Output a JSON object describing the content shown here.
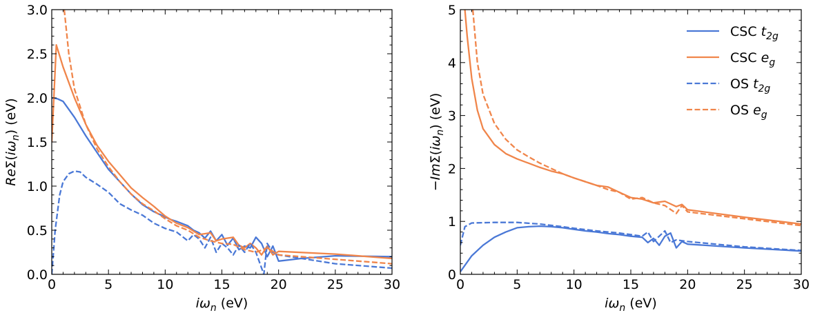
{
  "chart_data": [
    {
      "type": "line",
      "panel": "left",
      "ylabel": {
        "pre": "Re",
        "sigma": "Σ(",
        "iw": "iω",
        "sub": "n",
        "post": ")",
        "unit": "(eV)"
      },
      "xlabel": {
        "iw": "iω",
        "sub": "n",
        "unit": "(eV)"
      },
      "xlim": [
        0,
        30
      ],
      "ylim": [
        0,
        3.0
      ],
      "xticks": [
        "0",
        "5",
        "10",
        "15",
        "20",
        "25",
        "30"
      ],
      "yticks": [
        "0.0",
        "0.5",
        "1.0",
        "1.5",
        "2.0",
        "2.5",
        "3.0"
      ],
      "series": [
        {
          "name": "CSC t2g",
          "color": "#4a78d6",
          "dash": false,
          "x": [
            0,
            0.5,
            1,
            2,
            3,
            4,
            5,
            6,
            7,
            8,
            9,
            10,
            10.5,
            11,
            12,
            12.5,
            13,
            13.5,
            14,
            14.5,
            15,
            15.5,
            16,
            16.5,
            17,
            17.5,
            18,
            18.5,
            19,
            19.5,
            20,
            22,
            25,
            30
          ],
          "y": [
            2.0,
            1.99,
            1.96,
            1.78,
            1.57,
            1.38,
            1.19,
            1.05,
            0.91,
            0.79,
            0.71,
            0.65,
            0.62,
            0.6,
            0.55,
            0.5,
            0.47,
            0.41,
            0.49,
            0.38,
            0.45,
            0.33,
            0.41,
            0.28,
            0.32,
            0.3,
            0.42,
            0.35,
            0.2,
            0.32,
            0.15,
            0.18,
            0.21,
            0.2
          ]
        },
        {
          "name": "CSC eg",
          "color": "#f0854a",
          "dash": false,
          "x": [
            0,
            0.4,
            1,
            2,
            3,
            4,
            5,
            6,
            7,
            8,
            9,
            10,
            11,
            12,
            13,
            14,
            14.5,
            15,
            16,
            16.5,
            17,
            17.5,
            18,
            18.5,
            19,
            19.5,
            20,
            25,
            30
          ],
          "y": [
            1.5,
            2.6,
            2.35,
            2.0,
            1.7,
            1.46,
            1.28,
            1.13,
            0.98,
            0.87,
            0.77,
            0.66,
            0.58,
            0.53,
            0.45,
            0.47,
            0.38,
            0.4,
            0.42,
            0.33,
            0.3,
            0.35,
            0.3,
            0.22,
            0.32,
            0.22,
            0.26,
            0.23,
            0.18
          ]
        },
        {
          "name": "OS t2g",
          "color": "#4a78d6",
          "dash": true,
          "x": [
            0,
            0.3,
            0.7,
            1,
            1.5,
            2,
            2.5,
            3,
            4,
            5,
            6,
            7,
            8,
            9,
            10,
            11,
            12,
            12.5,
            13,
            13.5,
            14,
            14.5,
            15,
            15.5,
            16,
            16.5,
            17,
            17.5,
            18,
            18.7,
            19,
            19.5,
            20,
            25,
            30
          ],
          "y": [
            0.0,
            0.5,
            0.9,
            1.05,
            1.14,
            1.17,
            1.16,
            1.1,
            1.02,
            0.93,
            0.8,
            0.73,
            0.67,
            0.58,
            0.52,
            0.48,
            0.38,
            0.45,
            0.4,
            0.3,
            0.42,
            0.25,
            0.35,
            0.3,
            0.22,
            0.33,
            0.25,
            0.35,
            0.25,
            0.0,
            0.35,
            0.25,
            0.22,
            0.12,
            0.07
          ]
        },
        {
          "name": "OS eg",
          "color": "#f0854a",
          "dash": true,
          "x": [
            1.1,
            1.5,
            2,
            3,
            4,
            5,
            6,
            7,
            8,
            9,
            10,
            11,
            12,
            13,
            14,
            15,
            16,
            17,
            18,
            19,
            20,
            25,
            30
          ],
          "y": [
            3.0,
            2.5,
            2.1,
            1.7,
            1.42,
            1.22,
            1.05,
            0.91,
            0.8,
            0.72,
            0.63,
            0.55,
            0.5,
            0.42,
            0.38,
            0.35,
            0.34,
            0.28,
            0.25,
            0.3,
            0.22,
            0.17,
            0.12
          ]
        }
      ]
    },
    {
      "type": "line",
      "panel": "right",
      "ylabel": {
        "pre": "−Im",
        "sigma": "Σ(",
        "iw": "iω",
        "sub": "n",
        "post": ")",
        "unit": "(eV)"
      },
      "xlabel": {
        "iw": "iω",
        "sub": "n",
        "unit": "(eV)"
      },
      "xlim": [
        0,
        30
      ],
      "ylim": [
        0,
        5
      ],
      "xticks": [
        "0",
        "5",
        "10",
        "15",
        "20",
        "25",
        "30"
      ],
      "yticks": [
        "0",
        "1",
        "2",
        "3",
        "4",
        "5"
      ],
      "legend": "top-right",
      "series": [
        {
          "name": "CSC t2g",
          "label_main": "CSC",
          "label_sym": "t",
          "label_sub": "2g",
          "color": "#4a78d6",
          "dash": false,
          "x": [
            0,
            1,
            2,
            3,
            4,
            5,
            6,
            7,
            8,
            9,
            10,
            11,
            12,
            13,
            14,
            15,
            16,
            16.5,
            17,
            17.5,
            18,
            18.5,
            19,
            19.5,
            20,
            25,
            30
          ],
          "y": [
            0.05,
            0.35,
            0.55,
            0.7,
            0.8,
            0.88,
            0.9,
            0.91,
            0.9,
            0.88,
            0.85,
            0.82,
            0.8,
            0.77,
            0.75,
            0.72,
            0.7,
            0.6,
            0.68,
            0.55,
            0.72,
            0.78,
            0.5,
            0.62,
            0.57,
            0.5,
            0.44
          ]
        },
        {
          "name": "CSC eg",
          "label_main": "CSC",
          "label_sym": "e",
          "label_sub": "g",
          "color": "#f0854a",
          "dash": false,
          "x": [
            0.4,
            0.6,
            1,
            1.5,
            2,
            3,
            4,
            5,
            6,
            7,
            8,
            9,
            10,
            11,
            12,
            13,
            14,
            15,
            16,
            17,
            18,
            19,
            19.5,
            20,
            25,
            30
          ],
          "y": [
            5.0,
            4.5,
            3.7,
            3.1,
            2.75,
            2.45,
            2.28,
            2.18,
            2.1,
            2.02,
            1.95,
            1.9,
            1.82,
            1.75,
            1.68,
            1.65,
            1.55,
            1.45,
            1.42,
            1.35,
            1.38,
            1.28,
            1.32,
            1.22,
            1.08,
            0.95
          ]
        },
        {
          "name": "OS t2g",
          "label_main": "OS",
          "label_sym": "t",
          "label_sub": "2g",
          "color": "#4a78d6",
          "dash": true,
          "x": [
            0,
            0.4,
            1,
            3,
            5,
            7,
            9,
            10,
            12,
            14,
            16,
            16.5,
            17,
            17.5,
            18,
            18.5,
            19,
            20,
            25,
            30
          ],
          "y": [
            0.55,
            0.9,
            0.97,
            0.98,
            0.98,
            0.95,
            0.9,
            0.87,
            0.82,
            0.78,
            0.72,
            0.8,
            0.62,
            0.72,
            0.82,
            0.6,
            0.65,
            0.62,
            0.52,
            0.45
          ]
        },
        {
          "name": "OS eg",
          "label_main": "OS",
          "label_sym": "e",
          "label_sub": "g",
          "color": "#f0854a",
          "dash": true,
          "x": [
            1.1,
            1.5,
            2,
            3,
            4,
            5,
            6,
            7,
            8,
            9,
            10,
            12,
            13,
            14,
            15,
            16,
            17,
            18,
            19,
            19.5,
            20,
            25,
            30
          ],
          "y": [
            5.0,
            4.0,
            3.4,
            2.85,
            2.55,
            2.35,
            2.22,
            2.1,
            2.0,
            1.9,
            1.82,
            1.68,
            1.6,
            1.55,
            1.42,
            1.45,
            1.35,
            1.3,
            1.15,
            1.3,
            1.18,
            1.05,
            0.92
          ]
        }
      ]
    }
  ]
}
